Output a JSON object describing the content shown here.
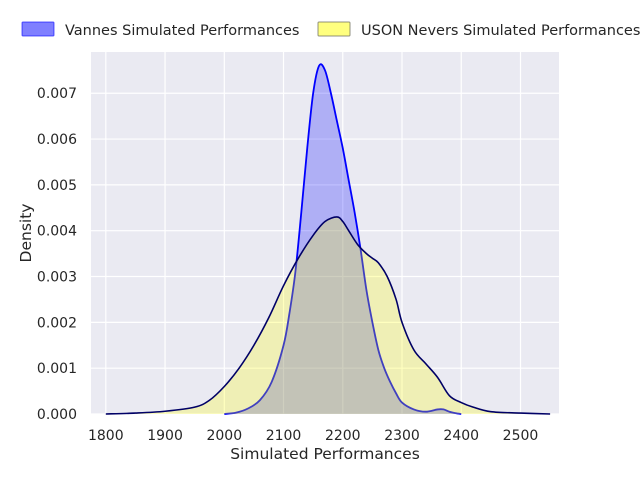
{
  "chart_data": {
    "type": "area",
    "title": "",
    "xlabel": "Simulated Performances",
    "ylabel": "Density",
    "xlim": [
      1775,
      2565
    ],
    "ylim": [
      0,
      0.0079
    ],
    "xticks": [
      1800,
      1900,
      2000,
      2100,
      2200,
      2300,
      2400,
      2500
    ],
    "yticks": [
      0.0,
      0.001,
      0.002,
      0.003,
      0.004,
      0.005,
      0.006,
      0.007
    ],
    "ytick_labels": [
      "0.000",
      "0.001",
      "0.002",
      "0.003",
      "0.004",
      "0.005",
      "0.006",
      "0.007"
    ],
    "grid": true,
    "legend_position": "top, outside plot",
    "background_color": "#eaeaf2",
    "series": [
      {
        "name": "Vannes Simulated Performances",
        "fill_color": "#0000ff",
        "line_color": "#0000ff",
        "x": [
          2000,
          2020,
          2040,
          2060,
          2080,
          2100,
          2110,
          2120,
          2130,
          2140,
          2150,
          2160,
          2170,
          2180,
          2190,
          2200,
          2210,
          2220,
          2230,
          2240,
          2250,
          2260,
          2270,
          2280,
          2290,
          2300,
          2320,
          2340,
          2360,
          2370,
          2380,
          2390,
          2400
        ],
        "y": [
          0.0,
          3e-05,
          0.00012,
          0.0003,
          0.0007,
          0.0015,
          0.0022,
          0.0031,
          0.0044,
          0.0058,
          0.007,
          0.0076,
          0.0075,
          0.007,
          0.0064,
          0.0058,
          0.0051,
          0.0044,
          0.0036,
          0.0027,
          0.002,
          0.0014,
          0.001,
          0.0007,
          0.00045,
          0.00025,
          0.0001,
          5e-05,
          0.0001,
          0.0001,
          5e-05,
          2e-05,
          0.0
        ]
      },
      {
        "name": "USON Nevers Simulated Performances",
        "fill_color": "#ffff00",
        "line_color": "#000066",
        "x": [
          1800,
          1850,
          1900,
          1950,
          1975,
          2000,
          2025,
          2050,
          2075,
          2100,
          2125,
          2150,
          2170,
          2190,
          2200,
          2210,
          2225,
          2240,
          2250,
          2260,
          2275,
          2290,
          2300,
          2320,
          2340,
          2360,
          2380,
          2400,
          2420,
          2450,
          2500,
          2550
        ],
        "y": [
          0.0,
          2e-05,
          6e-05,
          0.00015,
          0.0003,
          0.0006,
          0.001,
          0.0015,
          0.0021,
          0.0028,
          0.0034,
          0.0039,
          0.0042,
          0.0043,
          0.0042,
          0.004,
          0.0037,
          0.0035,
          0.0034,
          0.0033,
          0.003,
          0.0025,
          0.002,
          0.0014,
          0.0011,
          0.0008,
          0.0004,
          0.00025,
          0.00015,
          5e-05,
          2e-05,
          0.0
        ]
      }
    ]
  }
}
